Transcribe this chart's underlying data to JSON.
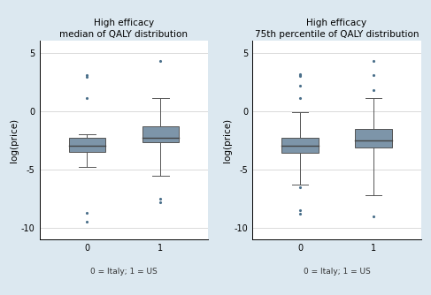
{
  "title_left": "High efficacy",
  "subtitle_left": "median of QALY distribution",
  "title_right": "High efficacy",
  "subtitle_right": "75th percentile of QALY distribution",
  "ylabel": "log(price)",
  "xlabel_note": "0 = Italy; 1 = US",
  "ylim": [
    -11,
    6
  ],
  "yticks": [
    -10,
    -5,
    0,
    5
  ],
  "xticks": [
    0,
    1
  ],
  "box_color": "#7d95a9",
  "whisker_color": "#555555",
  "median_color": "#444444",
  "bg_color": "#dce8f0",
  "plot_bg_color": "#ffffff",
  "outlier_color": "#4a6f8a",
  "left_boxes": {
    "group0": {
      "q1": -3.5,
      "median": -3.0,
      "q3": -2.3,
      "whisker_low": -4.8,
      "whisker_high": -2.0,
      "outliers_low": [
        -9.5,
        -8.7
      ],
      "outliers_high": [
        1.1,
        2.9,
        3.1
      ]
    },
    "group1": {
      "q1": -2.7,
      "median": -2.3,
      "q3": -1.3,
      "whisker_low": -5.5,
      "whisker_high": 1.1,
      "outliers_low": [
        -7.5,
        -7.8
      ],
      "outliers_high": [
        4.3
      ]
    }
  },
  "right_boxes": {
    "group0": {
      "q1": -3.6,
      "median": -3.0,
      "q3": -2.3,
      "whisker_low": -6.3,
      "whisker_high": -0.1,
      "outliers_low": [
        -8.5,
        -8.8,
        -6.5
      ],
      "outliers_high": [
        1.1,
        2.2,
        3.0,
        3.1,
        3.2
      ]
    },
    "group1": {
      "q1": -3.1,
      "median": -2.5,
      "q3": -1.5,
      "whisker_low": -7.2,
      "whisker_high": 1.1,
      "outliers_low": [
        -9.0
      ],
      "outliers_high": [
        1.8,
        3.1,
        4.3
      ]
    }
  }
}
